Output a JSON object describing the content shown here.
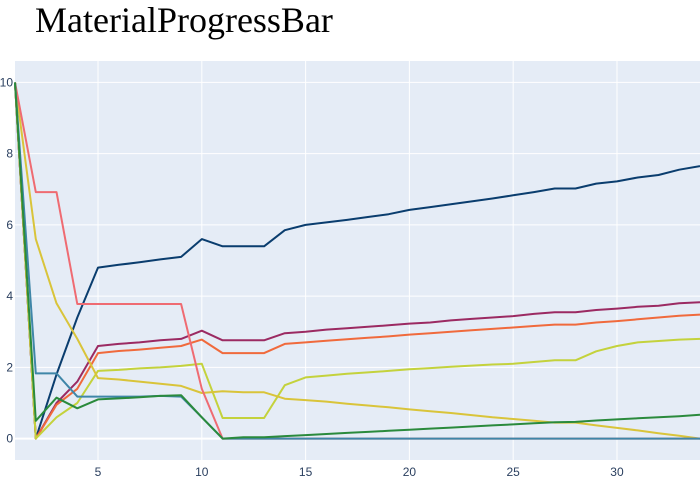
{
  "title": "MaterialProgressBar",
  "chart_data": {
    "type": "line",
    "title": "MaterialProgressBar",
    "xlabel": "",
    "ylabel": "",
    "xlim": [
      1,
      34
    ],
    "ylim": [
      -0.6,
      10.6
    ],
    "x_ticks": [
      5,
      10,
      15,
      20,
      25,
      30
    ],
    "y_ticks": [
      0,
      2,
      4,
      6,
      8,
      10
    ],
    "grid": true,
    "legend": "none",
    "background": "#e5ecf6",
    "series": [
      {
        "color": "#0a3d6e",
        "points": [
          [
            1,
            10
          ],
          [
            2,
            0
          ],
          [
            3,
            1.8
          ],
          [
            4,
            3.4
          ],
          [
            5,
            4.8
          ],
          [
            6,
            4.88
          ],
          [
            7,
            4.95
          ],
          [
            8,
            5.03
          ],
          [
            9,
            5.1
          ],
          [
            10,
            5.6
          ],
          [
            11,
            5.4
          ],
          [
            12,
            5.4
          ],
          [
            13,
            5.4
          ],
          [
            14,
            5.85
          ],
          [
            15,
            6.0
          ],
          [
            16,
            6.07
          ],
          [
            17,
            6.14
          ],
          [
            18,
            6.22
          ],
          [
            19,
            6.3
          ],
          [
            20,
            6.42
          ],
          [
            21,
            6.5
          ],
          [
            22,
            6.58
          ],
          [
            23,
            6.66
          ],
          [
            24,
            6.74
          ],
          [
            25,
            6.83
          ],
          [
            26,
            6.92
          ],
          [
            27,
            7.02
          ],
          [
            28,
            7.02
          ],
          [
            29,
            7.16
          ],
          [
            30,
            7.22
          ],
          [
            31,
            7.33
          ],
          [
            32,
            7.4
          ],
          [
            33,
            7.55
          ],
          [
            34,
            7.65
          ]
        ]
      },
      {
        "color": "#9b2a62",
        "points": [
          [
            1,
            10
          ],
          [
            2,
            0
          ],
          [
            3,
            1.0
          ],
          [
            4,
            1.6
          ],
          [
            5,
            2.6
          ],
          [
            6,
            2.66
          ],
          [
            7,
            2.7
          ],
          [
            8,
            2.76
          ],
          [
            9,
            2.8
          ],
          [
            10,
            3.03
          ],
          [
            11,
            2.76
          ],
          [
            12,
            2.76
          ],
          [
            13,
            2.76
          ],
          [
            14,
            2.96
          ],
          [
            15,
            3.0
          ],
          [
            16,
            3.06
          ],
          [
            17,
            3.1
          ],
          [
            18,
            3.14
          ],
          [
            19,
            3.18
          ],
          [
            20,
            3.23
          ],
          [
            21,
            3.26
          ],
          [
            22,
            3.32
          ],
          [
            23,
            3.36
          ],
          [
            24,
            3.4
          ],
          [
            25,
            3.44
          ],
          [
            26,
            3.5
          ],
          [
            27,
            3.55
          ],
          [
            28,
            3.55
          ],
          [
            29,
            3.61
          ],
          [
            30,
            3.65
          ],
          [
            31,
            3.7
          ],
          [
            32,
            3.73
          ],
          [
            33,
            3.8
          ],
          [
            34,
            3.83
          ]
        ]
      },
      {
        "color": "#f06a3c",
        "points": [
          [
            1,
            10
          ],
          [
            2,
            0
          ],
          [
            3,
            0.95
          ],
          [
            4,
            1.4
          ],
          [
            5,
            2.4
          ],
          [
            6,
            2.46
          ],
          [
            7,
            2.5
          ],
          [
            8,
            2.55
          ],
          [
            9,
            2.6
          ],
          [
            10,
            2.78
          ],
          [
            11,
            2.4
          ],
          [
            12,
            2.4
          ],
          [
            13,
            2.4
          ],
          [
            14,
            2.66
          ],
          [
            15,
            2.7
          ],
          [
            16,
            2.75
          ],
          [
            17,
            2.79
          ],
          [
            18,
            2.83
          ],
          [
            19,
            2.87
          ],
          [
            20,
            2.92
          ],
          [
            21,
            2.96
          ],
          [
            22,
            3.0
          ],
          [
            23,
            3.04
          ],
          [
            24,
            3.08
          ],
          [
            25,
            3.12
          ],
          [
            26,
            3.16
          ],
          [
            27,
            3.2
          ],
          [
            28,
            3.2
          ],
          [
            29,
            3.26
          ],
          [
            30,
            3.3
          ],
          [
            31,
            3.35
          ],
          [
            32,
            3.4
          ],
          [
            33,
            3.45
          ],
          [
            34,
            3.48
          ]
        ]
      },
      {
        "color": "#c4d23c",
        "points": [
          [
            1,
            10
          ],
          [
            2,
            0
          ],
          [
            3,
            0.6
          ],
          [
            4,
            1.0
          ],
          [
            5,
            1.9
          ],
          [
            6,
            1.93
          ],
          [
            7,
            1.97
          ],
          [
            8,
            2.0
          ],
          [
            9,
            2.04
          ],
          [
            10,
            2.1
          ],
          [
            11,
            0.58
          ],
          [
            12,
            0.58
          ],
          [
            13,
            0.58
          ],
          [
            14,
            1.5
          ],
          [
            15,
            1.72
          ],
          [
            16,
            1.77
          ],
          [
            17,
            1.82
          ],
          [
            18,
            1.86
          ],
          [
            19,
            1.9
          ],
          [
            20,
            1.95
          ],
          [
            21,
            1.98
          ],
          [
            22,
            2.02
          ],
          [
            23,
            2.05
          ],
          [
            24,
            2.08
          ],
          [
            25,
            2.1
          ],
          [
            26,
            2.15
          ],
          [
            27,
            2.2
          ],
          [
            28,
            2.2
          ],
          [
            29,
            2.45
          ],
          [
            30,
            2.6
          ],
          [
            31,
            2.7
          ],
          [
            32,
            2.74
          ],
          [
            33,
            2.78
          ],
          [
            34,
            2.8
          ]
        ]
      },
      {
        "color": "#d9c43a",
        "points": [
          [
            1,
            10
          ],
          [
            2,
            5.6
          ],
          [
            3,
            3.8
          ],
          [
            4,
            2.8
          ],
          [
            5,
            1.7
          ],
          [
            6,
            1.66
          ],
          [
            7,
            1.6
          ],
          [
            8,
            1.54
          ],
          [
            9,
            1.48
          ],
          [
            10,
            1.28
          ],
          [
            11,
            1.33
          ],
          [
            12,
            1.3
          ],
          [
            13,
            1.3
          ],
          [
            14,
            1.12
          ],
          [
            15,
            1.08
          ],
          [
            16,
            1.04
          ],
          [
            17,
            0.98
          ],
          [
            18,
            0.93
          ],
          [
            19,
            0.88
          ],
          [
            20,
            0.82
          ],
          [
            21,
            0.77
          ],
          [
            22,
            0.72
          ],
          [
            23,
            0.66
          ],
          [
            24,
            0.6
          ],
          [
            25,
            0.55
          ],
          [
            26,
            0.5
          ],
          [
            27,
            0.45
          ],
          [
            28,
            0.45
          ],
          [
            29,
            0.37
          ],
          [
            30,
            0.3
          ],
          [
            31,
            0.23
          ],
          [
            32,
            0.15
          ],
          [
            33,
            0.08
          ],
          [
            34,
            0
          ]
        ]
      },
      {
        "color": "#ef6b72",
        "points": [
          [
            1,
            10
          ],
          [
            2,
            6.92
          ],
          [
            3,
            6.92
          ],
          [
            4,
            3.78
          ],
          [
            5,
            3.78
          ],
          [
            6,
            3.78
          ],
          [
            7,
            3.78
          ],
          [
            8,
            3.78
          ],
          [
            9,
            3.78
          ],
          [
            10,
            1.4
          ],
          [
            11,
            0
          ],
          [
            12,
            0
          ],
          [
            13,
            0
          ],
          [
            14,
            0
          ],
          [
            15,
            0
          ],
          [
            16,
            0
          ],
          [
            17,
            0
          ],
          [
            18,
            0
          ],
          [
            19,
            0
          ],
          [
            20,
            0
          ],
          [
            21,
            0
          ],
          [
            22,
            0
          ],
          [
            23,
            0
          ],
          [
            24,
            0
          ],
          [
            25,
            0
          ],
          [
            26,
            0
          ],
          [
            27,
            0
          ],
          [
            28,
            0
          ],
          [
            29,
            0
          ],
          [
            30,
            0
          ],
          [
            31,
            0
          ],
          [
            32,
            0
          ],
          [
            33,
            0
          ],
          [
            34,
            0
          ]
        ]
      },
      {
        "color": "#3f86a8",
        "points": [
          [
            1,
            10
          ],
          [
            2,
            1.83
          ],
          [
            3,
            1.83
          ],
          [
            4,
            1.18
          ],
          [
            5,
            1.18
          ],
          [
            6,
            1.18
          ],
          [
            7,
            1.18
          ],
          [
            8,
            1.2
          ],
          [
            9,
            1.18
          ],
          [
            10,
            0.6
          ],
          [
            11,
            0
          ],
          [
            12,
            0
          ],
          [
            13,
            0
          ],
          [
            14,
            0
          ],
          [
            15,
            0
          ],
          [
            16,
            0
          ],
          [
            17,
            0
          ],
          [
            18,
            0
          ],
          [
            19,
            0
          ],
          [
            20,
            0
          ],
          [
            21,
            0
          ],
          [
            22,
            0
          ],
          [
            23,
            0
          ],
          [
            24,
            0
          ],
          [
            25,
            0
          ],
          [
            26,
            0
          ],
          [
            27,
            0
          ],
          [
            28,
            0
          ],
          [
            29,
            0
          ],
          [
            30,
            0
          ],
          [
            31,
            0
          ],
          [
            32,
            0
          ],
          [
            33,
            0
          ],
          [
            34,
            0
          ]
        ]
      },
      {
        "color": "#2a8a3c",
        "points": [
          [
            1,
            10
          ],
          [
            2,
            0.5
          ],
          [
            3,
            1.15
          ],
          [
            4,
            0.85
          ],
          [
            5,
            1.1
          ],
          [
            6,
            1.13
          ],
          [
            7,
            1.16
          ],
          [
            8,
            1.2
          ],
          [
            9,
            1.22
          ],
          [
            10,
            0.6
          ],
          [
            11,
            0
          ],
          [
            12,
            0.04
          ],
          [
            13,
            0.04
          ],
          [
            14,
            0.07
          ],
          [
            15,
            0.1
          ],
          [
            16,
            0.13
          ],
          [
            17,
            0.16
          ],
          [
            18,
            0.19
          ],
          [
            19,
            0.22
          ],
          [
            20,
            0.25
          ],
          [
            21,
            0.28
          ],
          [
            22,
            0.31
          ],
          [
            23,
            0.34
          ],
          [
            24,
            0.37
          ],
          [
            25,
            0.4
          ],
          [
            26,
            0.43
          ],
          [
            27,
            0.46
          ],
          [
            28,
            0.47
          ],
          [
            29,
            0.51
          ],
          [
            30,
            0.54
          ],
          [
            31,
            0.57
          ],
          [
            32,
            0.6
          ],
          [
            33,
            0.63
          ],
          [
            34,
            0.67
          ]
        ]
      }
    ]
  }
}
